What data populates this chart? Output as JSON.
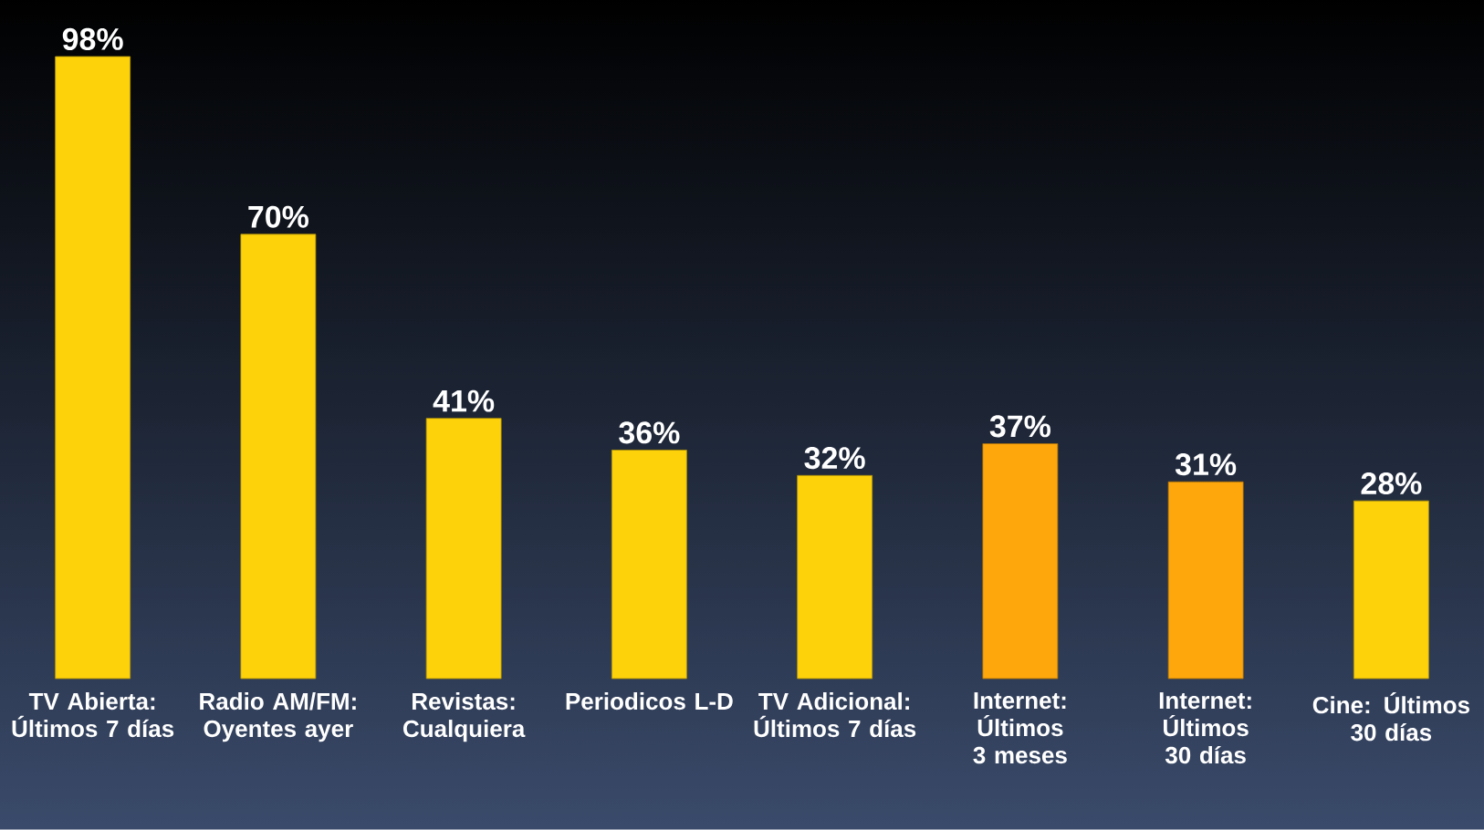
{
  "chart_data": {
    "type": "bar",
    "categories": [
      "TV Abierta: Últimos 7 días",
      "Radio AM/FM: Oyentes ayer",
      "Revistas: Cualquiera",
      "Periodicos L-D",
      "TV Adicional: Últimos 7 días",
      "Internet: Últimos 3 meses",
      "Internet: Últimos 30 días",
      "Cine: Últimos 30 días"
    ],
    "values": [
      98,
      70,
      41,
      36,
      32,
      37,
      31,
      28
    ],
    "value_labels": [
      "98%",
      "70%",
      "41%",
      "36%",
      "32%",
      "37%",
      "31%",
      "28%"
    ],
    "colors": [
      "#fdd20a",
      "#fdd20a",
      "#fdd20a",
      "#fdd20a",
      "#fdd20a",
      "#fea70c",
      "#fea70c",
      "#fdd20a"
    ],
    "ylim": [
      0,
      98
    ]
  }
}
